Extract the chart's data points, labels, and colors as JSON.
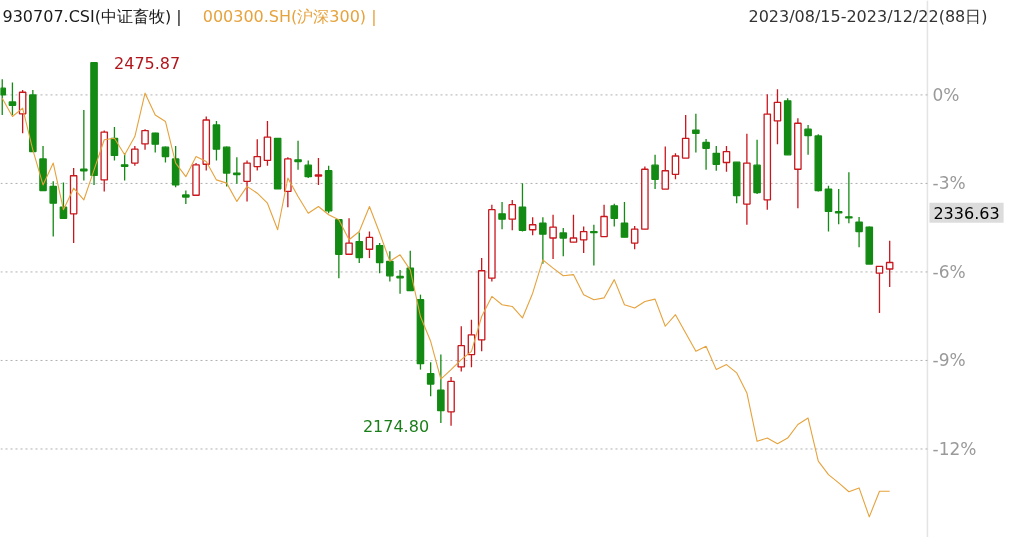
{
  "chart_data": {
    "type": "candlestick",
    "subtitle": "2023/08/15-2023/12/22(88日)",
    "categories": [
      null,
      null,
      null,
      null,
      null,
      null,
      null,
      null,
      null,
      null,
      null,
      null,
      null,
      null,
      null,
      null,
      null,
      null,
      null,
      null,
      null,
      null,
      null,
      null,
      null,
      null,
      null,
      null,
      null,
      null,
      null,
      null,
      null,
      null,
      null,
      null,
      null,
      null,
      null,
      null,
      null,
      null,
      null,
      null,
      null,
      null,
      null,
      null,
      null,
      null,
      null,
      null,
      null,
      null,
      null,
      null,
      null,
      null,
      null,
      null,
      null,
      null,
      null,
      null,
      null,
      null,
      null,
      null,
      null,
      null,
      null,
      null,
      null,
      null,
      null,
      null,
      null,
      null,
      null,
      null,
      null,
      null,
      null,
      null,
      null,
      null,
      null,
      null
    ],
    "ylim": [
      -15.0,
      3.2
    ],
    "yticks": [
      {
        "value": 0,
        "label": "0%"
      },
      {
        "value": -3,
        "label": "-3%"
      },
      {
        "value": -6,
        "label": "-6%"
      },
      {
        "value": -9,
        "label": "-9%"
      },
      {
        "value": -12,
        "label": "-12%"
      }
    ],
    "grid": "y",
    "legend": "top left",
    "series": [
      {
        "name": "930707.CSI(中证畜牧) |",
        "ohlc": [
          [
            0.23,
            0.53,
            -0.68,
            0.0
          ],
          [
            -0.24,
            0.42,
            -0.68,
            -0.35
          ],
          [
            -0.64,
            0.17,
            -1.3,
            0.09
          ],
          [
            0.0,
            0.17,
            -1.92,
            -1.92
          ],
          [
            -2.17,
            -1.73,
            -3.24,
            -3.24
          ],
          [
            -3.1,
            -2.93,
            -4.8,
            -3.67
          ],
          [
            -3.8,
            -2.97,
            -4.18,
            -4.18
          ],
          [
            -4.03,
            -2.48,
            -5.02,
            -2.74
          ],
          [
            -2.52,
            -0.51,
            -2.9,
            -2.57
          ],
          [
            1.09,
            1.09,
            -3.05,
            -2.73
          ],
          [
            -2.88,
            -1.21,
            -3.27,
            -1.26
          ],
          [
            -1.47,
            -1.09,
            -2.22,
            -2.05
          ],
          [
            -2.37,
            -1.98,
            -2.9,
            -2.42
          ],
          [
            -2.31,
            -1.73,
            -2.4,
            -1.84
          ],
          [
            -1.66,
            -1.16,
            -1.86,
            -1.21
          ],
          [
            -1.3,
            -1.28,
            -1.95,
            -1.67
          ],
          [
            -1.77,
            -1.75,
            -2.29,
            -2.09
          ],
          [
            -2.17,
            -1.73,
            -3.13,
            -3.05
          ],
          [
            -3.39,
            -3.24,
            -3.7,
            -3.46
          ],
          [
            -3.4,
            -2.31,
            -3.4,
            -2.37
          ],
          [
            -2.35,
            -0.73,
            -2.56,
            -0.85
          ],
          [
            -1.02,
            -0.88,
            -2.22,
            -1.84
          ],
          [
            -1.77,
            -1.75,
            -3.1,
            -2.65
          ],
          [
            -2.65,
            -2.11,
            -3.01,
            -2.7
          ],
          [
            -2.93,
            -2.22,
            -3.61,
            -2.31
          ],
          [
            -2.43,
            -1.5,
            -2.56,
            -2.09
          ],
          [
            -2.22,
            -0.88,
            -2.4,
            -1.43
          ],
          [
            -1.47,
            -1.47,
            -3.18,
            -3.18
          ],
          [
            -3.27,
            -2.11,
            -3.81,
            -2.17
          ],
          [
            -2.2,
            -1.55,
            -2.54,
            -2.26
          ],
          [
            -2.38,
            -2.22,
            -2.82,
            -2.77
          ],
          [
            -2.75,
            -2.14,
            -3.05,
            -2.71
          ],
          [
            -2.57,
            -2.4,
            -4.01,
            -3.93
          ],
          [
            -4.23,
            -4.23,
            -6.21,
            -5.4
          ],
          [
            -5.4,
            -4.18,
            -5.4,
            -5.02
          ],
          [
            -4.97,
            -4.66,
            -5.7,
            -5.51
          ],
          [
            -5.23,
            -4.63,
            -5.53,
            -4.83
          ],
          [
            -5.11,
            -5.02,
            -6.04,
            -5.68
          ],
          [
            -5.64,
            -5.3,
            -6.32,
            -6.13
          ],
          [
            -6.15,
            -5.93,
            -6.74,
            -6.2
          ],
          [
            -5.87,
            -5.28,
            -6.63,
            -6.63
          ],
          [
            -6.94,
            -6.77,
            -9.31,
            -9.11
          ],
          [
            -9.45,
            -9.06,
            -10.21,
            -9.8
          ],
          [
            -10.01,
            -8.8,
            -11.12,
            -10.7
          ],
          [
            -10.74,
            -9.56,
            -11.21,
            -9.71
          ],
          [
            -9.22,
            -7.84,
            -9.37,
            -8.5
          ],
          [
            -8.8,
            -7.62,
            -9.23,
            -8.13
          ],
          [
            -8.3,
            -5.53,
            -8.69,
            -5.96
          ],
          [
            -6.21,
            -3.72,
            -6.32,
            -3.89
          ],
          [
            -4.03,
            -3.63,
            -4.55,
            -4.21
          ],
          [
            -4.21,
            -3.56,
            -4.59,
            -3.72
          ],
          [
            -3.8,
            -2.99,
            -4.63,
            -4.59
          ],
          [
            -4.57,
            -4.15,
            -4.76,
            -4.4
          ],
          [
            -4.35,
            -4.15,
            -5.72,
            -4.72
          ],
          [
            -4.85,
            -4.06,
            -5.56,
            -4.48
          ],
          [
            -4.68,
            -4.51,
            -5.47,
            -4.85
          ],
          [
            -4.99,
            -4.06,
            -4.99,
            -4.85
          ],
          [
            -4.91,
            -4.46,
            -5.36,
            -4.63
          ],
          [
            -4.63,
            -4.4,
            -5.78,
            -4.67
          ],
          [
            -4.8,
            -3.72,
            -4.8,
            -4.12
          ],
          [
            -3.76,
            -3.69,
            -4.46,
            -4.18
          ],
          [
            -4.35,
            -3.63,
            -4.82,
            -4.82
          ],
          [
            -5.02,
            -4.44,
            -5.23,
            -4.55
          ],
          [
            -4.55,
            -2.43,
            -4.55,
            -2.52
          ],
          [
            -2.38,
            -2.03,
            -3.19,
            -2.86
          ],
          [
            -3.19,
            -1.75,
            -3.19,
            -2.57
          ],
          [
            -2.69,
            -1.98,
            -2.86,
            -2.07
          ],
          [
            -2.14,
            -0.68,
            -2.14,
            -1.47
          ],
          [
            -1.19,
            -0.64,
            -1.95,
            -1.3
          ],
          [
            -1.61,
            -1.49,
            -2.54,
            -1.81
          ],
          [
            -1.98,
            -1.73,
            -2.57,
            -2.35
          ],
          [
            -2.29,
            -1.73,
            -2.6,
            -1.92
          ],
          [
            -2.28,
            -2.28,
            -3.67,
            -3.41
          ],
          [
            -3.7,
            -1.32,
            -4.4,
            -2.31
          ],
          [
            -2.38,
            -1.52,
            -3.36,
            -3.31
          ],
          [
            -3.56,
            0.02,
            -3.89,
            -0.65
          ],
          [
            -0.88,
            0.19,
            -1.67,
            -0.25
          ],
          [
            -0.2,
            -0.11,
            -2.03,
            -2.03
          ],
          [
            -2.52,
            -0.79,
            -3.84,
            -0.96
          ],
          [
            -1.16,
            -1.02,
            -2.03,
            -1.38
          ],
          [
            -1.39,
            -1.33,
            -3.27,
            -3.24
          ],
          [
            -3.19,
            -3.08,
            -4.63,
            -3.95
          ],
          [
            -3.96,
            -3.19,
            -4.38,
            -4.0
          ],
          [
            -4.13,
            -2.62,
            -4.35,
            -4.17
          ],
          [
            -4.31,
            -4.14,
            -5.16,
            -4.63
          ],
          [
            -4.48,
            -4.46,
            -5.73,
            -5.73
          ],
          [
            -6.04,
            -5.81,
            -7.39,
            -5.81
          ],
          [
            -5.9,
            -4.94,
            -6.51,
            -5.68
          ]
        ]
      },
      {
        "name": "000300.SH(沪深300) |",
        "type": "line",
        "color": "#e6a23c",
        "values": [
          -0.11,
          -0.73,
          -0.45,
          -1.86,
          -3.05,
          -2.31,
          -3.89,
          -3.16,
          -3.56,
          -2.54,
          -1.52,
          -1.47,
          -2.03,
          -1.41,
          0.06,
          -0.68,
          -0.9,
          -2.31,
          -2.77,
          -2.09,
          -2.26,
          -2.88,
          -2.99,
          -3.61,
          -3.1,
          -3.33,
          -3.67,
          -4.57,
          -2.82,
          -3.44,
          -4.01,
          -3.78,
          -4.06,
          -4.23,
          -4.91,
          -4.63,
          -3.78,
          -4.68,
          -5.64,
          -5.42,
          -5.93,
          -7.51,
          -8.35,
          -9.63,
          -9.31,
          -8.97,
          -8.69,
          -7.51,
          -6.83,
          -7.11,
          -7.17,
          -7.56,
          -6.72,
          -5.59,
          -5.87,
          -6.13,
          -6.09,
          -6.77,
          -6.94,
          -6.88,
          -6.26,
          -7.11,
          -7.22,
          -7.0,
          -6.92,
          -7.84,
          -7.45,
          -8.07,
          -8.69,
          -8.52,
          -9.31,
          -9.14,
          -9.42,
          -10.1,
          -11.74,
          -11.63,
          -11.82,
          -11.63,
          -11.17,
          -10.95,
          -12.41,
          -12.87,
          -13.15,
          -13.45,
          -13.32,
          -14.3,
          -13.43,
          -13.43
        ]
      }
    ],
    "annotations": [
      "2475.87",
      "2174.80",
      "2336.63"
    ]
  }
}
